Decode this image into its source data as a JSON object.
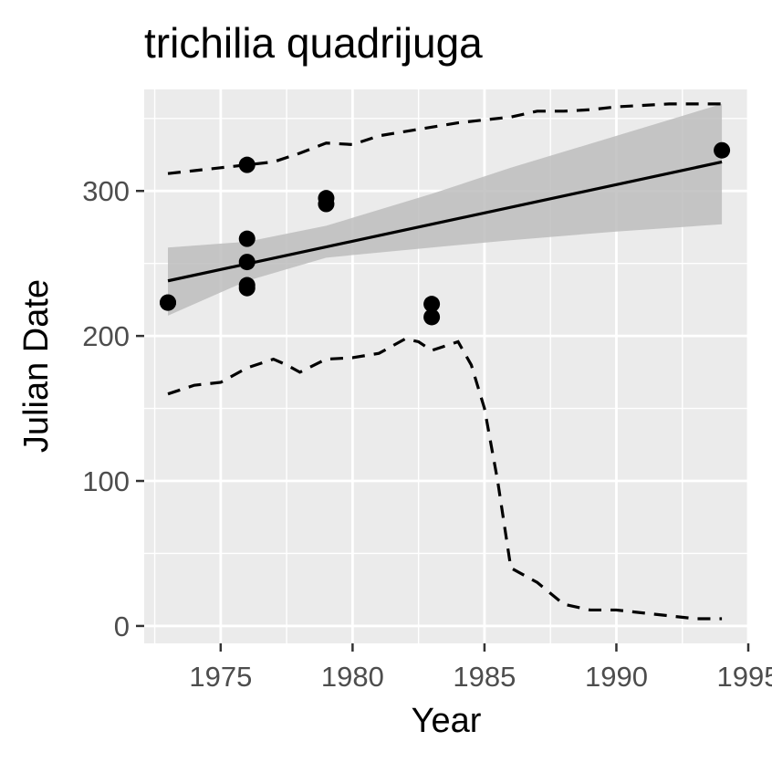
{
  "chart_data": {
    "type": "scatter",
    "title": "trichilia quadrijuga",
    "xlabel": "Year",
    "ylabel": "Julian Date",
    "xlim": [
      1972.1,
      1995
    ],
    "ylim": [
      -12,
      370
    ],
    "x_ticks": [
      1975,
      1980,
      1985,
      1990,
      1995
    ],
    "x_tick_labels": [
      "1975",
      "1980",
      "1985",
      "1990",
      "1995"
    ],
    "y_ticks": [
      0,
      100,
      200,
      300
    ],
    "y_tick_labels": [
      "0",
      "100",
      "200",
      "300"
    ],
    "grid": true,
    "background": "#ebebeb",
    "ribbon_color": "#bdbdbd",
    "points": [
      {
        "x": 1973,
        "y": 223
      },
      {
        "x": 1973,
        "y": 223
      },
      {
        "x": 1976,
        "y": 318
      },
      {
        "x": 1976,
        "y": 267
      },
      {
        "x": 1976,
        "y": 251
      },
      {
        "x": 1976,
        "y": 235
      },
      {
        "x": 1976,
        "y": 233
      },
      {
        "x": 1979,
        "y": 295
      },
      {
        "x": 1979,
        "y": 291
      },
      {
        "x": 1983,
        "y": 222
      },
      {
        "x": 1983,
        "y": 213
      },
      {
        "x": 1994,
        "y": 328
      }
    ],
    "fit_line": {
      "x": [
        1973,
        1994
      ],
      "y": [
        238,
        320
      ]
    },
    "confidence_band": {
      "x": [
        1973,
        1976,
        1979,
        1983,
        1986,
        1990,
        1994
      ],
      "lower": [
        214,
        238,
        254,
        261,
        266,
        272,
        277
      ],
      "upper": [
        261,
        265,
        276,
        298,
        316,
        338,
        360
      ]
    },
    "upper_dashed": {
      "x": [
        1973,
        1974,
        1975,
        1976,
        1977,
        1978,
        1979,
        1980,
        1981,
        1982,
        1983,
        1984,
        1985,
        1986,
        1987,
        1988,
        1989,
        1990,
        1991,
        1992,
        1993,
        1994
      ],
      "y": [
        312,
        314,
        316,
        318,
        320,
        326,
        333,
        332,
        338,
        341,
        344,
        347,
        349,
        351,
        355,
        355,
        356,
        358,
        359,
        360,
        360,
        360
      ]
    },
    "lower_dashed": {
      "x": [
        1973,
        1974,
        1975,
        1976,
        1977,
        1977.5,
        1978,
        1979,
        1980,
        1981,
        1982,
        1982.5,
        1983,
        1984,
        1984.5,
        1985,
        1985.5,
        1986,
        1987,
        1988,
        1989,
        1990,
        1991,
        1992,
        1993,
        1994
      ],
      "y": [
        160,
        166,
        168,
        178,
        184,
        180,
        175,
        184,
        185,
        188,
        198,
        196,
        190,
        196,
        180,
        150,
        100,
        40,
        30,
        15,
        11,
        11,
        9,
        7,
        5,
        5
      ]
    }
  }
}
